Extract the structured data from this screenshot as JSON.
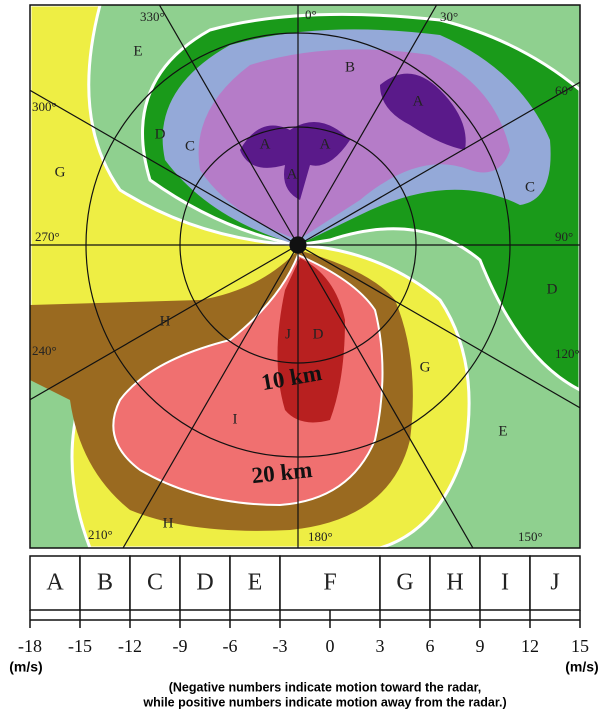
{
  "map": {
    "azimuth_labels": [
      "0°",
      "30°",
      "60°",
      "90°",
      "120°",
      "150°",
      "180°",
      "210°",
      "240°",
      "270°",
      "300°",
      "330°"
    ],
    "region_labels": [
      "B",
      "A",
      "A",
      "A",
      "A",
      "C",
      "C",
      "D",
      "D",
      "E",
      "E",
      "G",
      "G",
      "H",
      "H",
      "I",
      "J",
      "D"
    ],
    "range_labels": [
      "10 km",
      "20 km"
    ]
  },
  "legend": {
    "classes": [
      "A",
      "B",
      "C",
      "D",
      "E",
      "F",
      "G",
      "H",
      "I",
      "J"
    ],
    "ticks": [
      -18,
      -15,
      -12,
      -9,
      -6,
      -3,
      0,
      3,
      6,
      9,
      12,
      15
    ],
    "unit_left": "(m/s)",
    "unit_right": "(m/s)",
    "caption": [
      "(Negative numbers indicate motion toward the radar,",
      "while positive numbers indicate motion away from the radar.)"
    ]
  }
}
